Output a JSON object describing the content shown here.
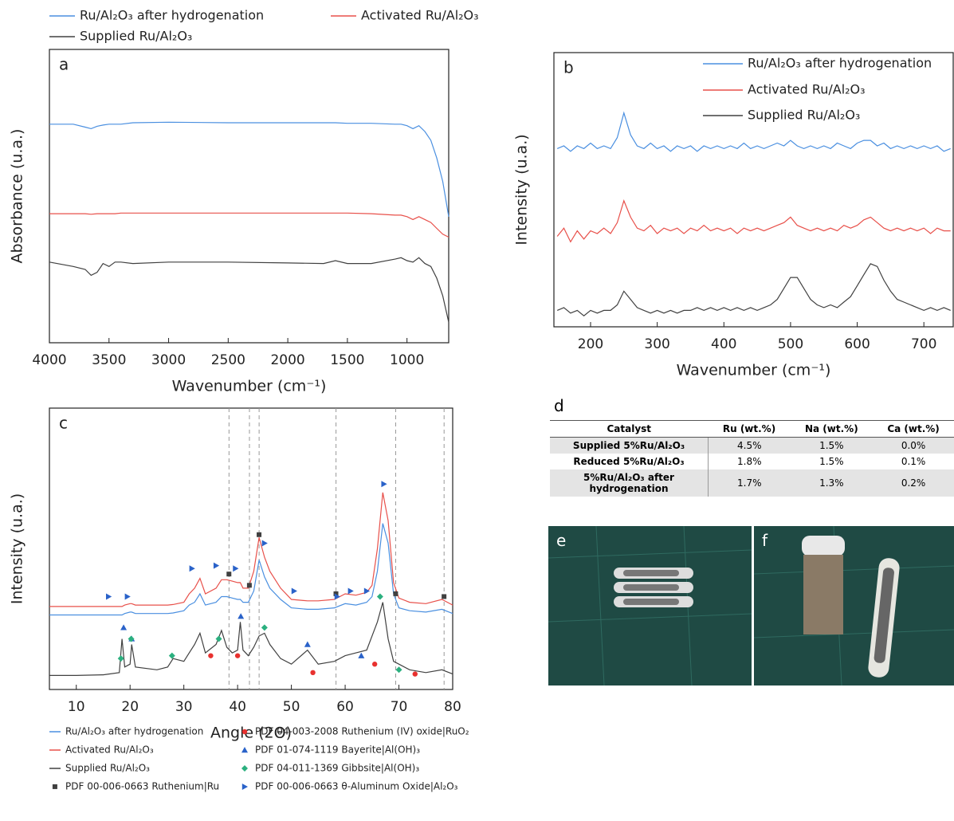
{
  "chart_data": [
    {
      "type": "line",
      "label": "a",
      "y_label": "Absorbance (u.a.)",
      "x_label": "Wavenumber (cm⁻¹)",
      "xlim": [
        4000,
        650
      ],
      "xticks": [
        4000,
        3500,
        3000,
        2500,
        2000,
        1500,
        1000
      ],
      "ylim": [
        0,
        10
      ],
      "x": [
        4000,
        3800,
        3700,
        3650,
        3600,
        3550,
        3500,
        3450,
        3400,
        3300,
        3000,
        2500,
        2000,
        1700,
        1600,
        1500,
        1300,
        1100,
        1050,
        1000,
        950,
        900,
        850,
        800,
        750,
        700,
        650
      ],
      "series": [
        {
          "name": "Ru/Al₂O₃ after hydrogenation",
          "color": "#4a8fe0",
          "values": [
            7.45,
            7.45,
            7.35,
            7.3,
            7.38,
            7.42,
            7.45,
            7.45,
            7.45,
            7.5,
            7.52,
            7.5,
            7.5,
            7.5,
            7.5,
            7.48,
            7.48,
            7.45,
            7.45,
            7.4,
            7.3,
            7.4,
            7.2,
            6.9,
            6.3,
            5.5,
            4.3
          ]
        },
        {
          "name": "Activated Ru/Al₂O₃",
          "color": "#e8504a",
          "values": [
            4.4,
            4.4,
            4.4,
            4.38,
            4.4,
            4.4,
            4.4,
            4.4,
            4.42,
            4.42,
            4.42,
            4.42,
            4.42,
            4.42,
            4.42,
            4.42,
            4.4,
            4.35,
            4.35,
            4.3,
            4.2,
            4.3,
            4.2,
            4.1,
            3.9,
            3.7,
            3.6
          ]
        },
        {
          "name": "Supplied Ru/Al₂O₃",
          "color": "#404040",
          "values": [
            2.75,
            2.6,
            2.5,
            2.3,
            2.4,
            2.7,
            2.6,
            2.75,
            2.75,
            2.7,
            2.75,
            2.75,
            2.72,
            2.7,
            2.8,
            2.7,
            2.7,
            2.85,
            2.9,
            2.8,
            2.75,
            2.9,
            2.7,
            2.6,
            2.2,
            1.6,
            0.7
          ]
        }
      ]
    },
    {
      "type": "line",
      "label": "b",
      "y_label": "Intensity (u.a.)",
      "x_label": "Wavenumber (cm⁻¹)",
      "xlim": [
        145,
        744
      ],
      "xticks": [
        200,
        300,
        400,
        500,
        600,
        700
      ],
      "ylim": [
        0,
        10
      ],
      "x": [
        150,
        160,
        170,
        180,
        190,
        200,
        210,
        220,
        230,
        240,
        250,
        260,
        270,
        280,
        290,
        300,
        310,
        320,
        330,
        340,
        350,
        360,
        370,
        380,
        390,
        400,
        410,
        420,
        430,
        440,
        450,
        460,
        470,
        480,
        490,
        500,
        510,
        520,
        530,
        540,
        550,
        560,
        570,
        580,
        590,
        600,
        610,
        620,
        630,
        640,
        650,
        660,
        670,
        680,
        690,
        700,
        710,
        720,
        730,
        740
      ],
      "series": [
        {
          "name": "Ru/Al₂O₃ after hydrogenation",
          "color": "#4a8fe0",
          "values": [
            6.5,
            6.6,
            6.4,
            6.6,
            6.5,
            6.7,
            6.5,
            6.6,
            6.5,
            6.9,
            7.8,
            7.0,
            6.6,
            6.5,
            6.7,
            6.5,
            6.6,
            6.4,
            6.6,
            6.5,
            6.6,
            6.4,
            6.6,
            6.5,
            6.6,
            6.5,
            6.6,
            6.5,
            6.7,
            6.5,
            6.6,
            6.5,
            6.6,
            6.7,
            6.6,
            6.8,
            6.6,
            6.5,
            6.6,
            6.5,
            6.6,
            6.5,
            6.7,
            6.6,
            6.5,
            6.7,
            6.8,
            6.8,
            6.6,
            6.7,
            6.5,
            6.6,
            6.5,
            6.6,
            6.5,
            6.6,
            6.5,
            6.6,
            6.4,
            6.5
          ]
        },
        {
          "name": "Activated Ru/Al₂O₃",
          "color": "#e8504a",
          "values": [
            3.3,
            3.6,
            3.1,
            3.5,
            3.2,
            3.5,
            3.4,
            3.6,
            3.4,
            3.8,
            4.6,
            4.0,
            3.6,
            3.5,
            3.7,
            3.4,
            3.6,
            3.5,
            3.6,
            3.4,
            3.6,
            3.5,
            3.7,
            3.5,
            3.6,
            3.5,
            3.6,
            3.4,
            3.6,
            3.5,
            3.6,
            3.5,
            3.6,
            3.7,
            3.8,
            4.0,
            3.7,
            3.6,
            3.5,
            3.6,
            3.5,
            3.6,
            3.5,
            3.7,
            3.6,
            3.7,
            3.9,
            4.0,
            3.8,
            3.6,
            3.5,
            3.6,
            3.5,
            3.6,
            3.5,
            3.6,
            3.4,
            3.6,
            3.5,
            3.5
          ]
        },
        {
          "name": "Supplied Ru/Al₂O₃",
          "color": "#404040",
          "values": [
            0.6,
            0.7,
            0.5,
            0.6,
            0.4,
            0.6,
            0.5,
            0.6,
            0.6,
            0.8,
            1.3,
            1.0,
            0.7,
            0.6,
            0.5,
            0.6,
            0.5,
            0.6,
            0.5,
            0.6,
            0.6,
            0.7,
            0.6,
            0.7,
            0.6,
            0.7,
            0.6,
            0.7,
            0.6,
            0.7,
            0.6,
            0.7,
            0.8,
            1.0,
            1.4,
            1.8,
            1.8,
            1.4,
            1.0,
            0.8,
            0.7,
            0.8,
            0.7,
            0.9,
            1.1,
            1.5,
            1.9,
            2.3,
            2.2,
            1.7,
            1.3,
            1.0,
            0.9,
            0.8,
            0.7,
            0.6,
            0.7,
            0.6,
            0.7,
            0.6
          ]
        }
      ]
    },
    {
      "type": "line",
      "label": "c",
      "y_label": "Intensity (u.a.)",
      "x_label": "Angle (2Θ)",
      "xlim": [
        5,
        80
      ],
      "xticks": [
        10,
        20,
        30,
        40,
        50,
        60,
        70,
        80
      ],
      "ylim": [
        0,
        10
      ],
      "reference_lines": [
        38.4,
        42.2,
        44.0,
        58.3,
        69.4,
        78.4
      ],
      "x": [
        5,
        10,
        15,
        18,
        18.5,
        19,
        20,
        20.3,
        21,
        25,
        27,
        28,
        30,
        31,
        32,
        33,
        34,
        36,
        37,
        38,
        39,
        40,
        40.5,
        41,
        42,
        43,
        44,
        45,
        46,
        48,
        50,
        53,
        55,
        58,
        60,
        62,
        64,
        65,
        66,
        67,
        68,
        69,
        70,
        72,
        75,
        78,
        80
      ],
      "series": [
        {
          "name": "Ru/Al₂O₃ after hydrogenation",
          "color": "#4a8fe0",
          "values": [
            2.65,
            2.65,
            2.65,
            2.65,
            2.65,
            2.7,
            2.75,
            2.75,
            2.7,
            2.7,
            2.7,
            2.72,
            2.8,
            3.0,
            3.1,
            3.4,
            3.0,
            3.1,
            3.3,
            3.3,
            3.25,
            3.2,
            3.2,
            3.1,
            3.1,
            3.5,
            4.6,
            4.0,
            3.6,
            3.2,
            2.9,
            2.85,
            2.85,
            2.9,
            3.05,
            3.0,
            3.1,
            3.3,
            4.2,
            5.9,
            5.2,
            3.4,
            2.9,
            2.8,
            2.75,
            2.85,
            2.7
          ]
        },
        {
          "name": "Activated Ru/Al₂O₃",
          "color": "#e8504a",
          "values": [
            2.95,
            2.95,
            2.95,
            2.95,
            2.95,
            3.0,
            3.05,
            3.05,
            3.0,
            3.0,
            3.0,
            3.02,
            3.1,
            3.4,
            3.6,
            3.95,
            3.4,
            3.6,
            3.9,
            3.9,
            3.85,
            3.8,
            3.8,
            3.6,
            3.6,
            4.2,
            5.4,
            4.7,
            4.2,
            3.6,
            3.2,
            3.15,
            3.15,
            3.2,
            3.4,
            3.35,
            3.45,
            3.7,
            5.0,
            7.0,
            6.0,
            3.8,
            3.25,
            3.1,
            3.05,
            3.2,
            3.0
          ]
        },
        {
          "name": "Supplied Ru/Al₂O₃",
          "color": "#404040",
          "values": [
            0.5,
            0.5,
            0.52,
            0.6,
            1.8,
            0.8,
            0.9,
            1.6,
            0.8,
            0.7,
            0.8,
            1.1,
            1.0,
            1.3,
            1.6,
            2.0,
            1.3,
            1.6,
            2.1,
            1.5,
            1.3,
            1.4,
            2.4,
            1.4,
            1.2,
            1.5,
            1.9,
            2.0,
            1.6,
            1.1,
            0.9,
            1.4,
            0.9,
            1.0,
            1.2,
            1.3,
            1.4,
            1.9,
            2.4,
            3.1,
            1.8,
            1.0,
            0.9,
            0.7,
            0.6,
            0.7,
            0.55
          ]
        },
        {
          "name": "PDF 00-006-0663 Ruthenium|Ru",
          "color": "#404040",
          "kind": "scatter",
          "marker": "square",
          "x": [
            38.4,
            42.2,
            44.0,
            58.3,
            69.4,
            78.4
          ],
          "values": [
            4.1,
            3.7,
            5.5,
            3.4,
            3.4,
            3.3
          ]
        },
        {
          "name": "PDF 04-003-2008 Ruthenium (IV) oxide|RuO₂",
          "color": "#e8312f",
          "kind": "scatter",
          "marker": "circle",
          "x": [
            35,
            40,
            54,
            65.5,
            73
          ],
          "values": [
            1.2,
            1.2,
            0.6,
            0.9,
            0.55
          ]
        },
        {
          "name": "PDF 01-074-1119 Bayerite|Al(OH)₃",
          "color": "#2a62c9",
          "kind": "scatter",
          "marker": "triangle",
          "x": [
            18.8,
            20.3,
            40.6,
            53,
            63
          ],
          "values": [
            2.2,
            1.8,
            2.6,
            1.6,
            1.2
          ]
        },
        {
          "name": "PDF 04-011-1369 Gibbsite|Al(OH)₃",
          "color": "#2bb07f",
          "kind": "scatter",
          "marker": "diamond",
          "x": [
            18.3,
            20.2,
            27.8,
            36.5,
            45,
            66.5,
            70
          ],
          "values": [
            1.1,
            1.8,
            1.2,
            1.8,
            2.2,
            3.3,
            0.7
          ]
        },
        {
          "name": "PDF 00-006-0663 θ-Aluminum Oxide|Al₂O₃",
          "color": "#2a62c9",
          "kind": "scatter",
          "marker": "triangle-right",
          "x": [
            16,
            19.5,
            31.5,
            36,
            39.6,
            45,
            50.5,
            58.5,
            61,
            64,
            67.2
          ],
          "values": [
            3.3,
            3.3,
            4.3,
            4.4,
            4.3,
            5.2,
            3.5,
            3.3,
            3.5,
            3.5,
            7.3
          ]
        }
      ]
    }
  ],
  "table": {
    "label": "d",
    "columns": [
      "Catalyst",
      "Ru (wt.%)",
      "Na (wt.%)",
      "Ca (wt.%)"
    ],
    "rows": [
      [
        "Supplied 5%Ru/Al₂O₃",
        "4.5%",
        "1.5%",
        "0.0%"
      ],
      [
        "Reduced 5%Ru/Al₂O₃",
        "1.8%",
        "1.5%",
        "0.1%"
      ],
      [
        "5%Ru/Al₂O₃ after hydrogenation",
        "1.7%",
        "1.3%",
        "0.2%"
      ]
    ]
  },
  "photos": [
    "e",
    "f"
  ]
}
